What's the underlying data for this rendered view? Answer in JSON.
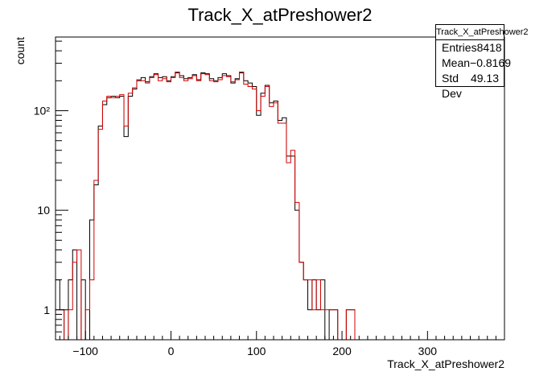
{
  "chart_data": {
    "type": "histogram",
    "title": "Track_X_atPreshower2",
    "xlabel": "Track_X_atPreshower2",
    "ylabel": "count",
    "xlim": [
      -135,
      390
    ],
    "ylim": [
      0.5,
      550
    ],
    "yscale": "log",
    "bin_width": 5,
    "bin_edges_start": -135,
    "xticks": [
      -100,
      0,
      100,
      200,
      300
    ],
    "xtick_labels": [
      "−100",
      "0",
      "100",
      "200",
      "300"
    ],
    "yticks": [
      1,
      10,
      100
    ],
    "ytick_labels": [
      "1",
      "10",
      "10²"
    ],
    "series": [
      {
        "color": "#000000",
        "values": [
          2,
          1,
          0,
          2,
          4,
          0,
          2,
          0,
          8,
          18,
          70,
          115,
          135,
          140,
          135,
          140,
          55,
          140,
          165,
          200,
          215,
          195,
          220,
          235,
          215,
          220,
          200,
          220,
          240,
          225,
          210,
          215,
          230,
          205,
          240,
          235,
          210,
          200,
          215,
          235,
          225,
          190,
          210,
          240,
          200,
          190,
          175,
          90,
          150,
          180,
          120,
          125,
          80,
          85,
          35,
          35,
          10,
          3,
          2,
          1,
          2,
          1,
          2,
          0,
          1,
          1,
          0,
          0,
          1,
          1,
          0,
          0,
          0,
          0,
          0,
          0,
          0,
          0,
          0,
          0,
          0,
          0,
          0,
          0,
          0,
          0,
          0,
          0,
          0,
          0,
          0,
          0,
          0,
          0,
          0,
          0,
          0,
          0,
          0,
          0,
          0,
          0,
          0,
          0,
          0
        ]
      },
      {
        "color": "#d40000",
        "values": [
          1,
          1,
          0,
          1,
          3,
          4,
          0,
          1,
          2,
          20,
          65,
          125,
          140,
          135,
          140,
          145,
          70,
          150,
          170,
          205,
          200,
          190,
          215,
          230,
          200,
          210,
          195,
          215,
          245,
          215,
          200,
          210,
          225,
          200,
          235,
          230,
          200,
          195,
          205,
          225,
          220,
          195,
          205,
          245,
          185,
          175,
          165,
          100,
          140,
          175,
          110,
          120,
          75,
          75,
          30,
          40,
          12,
          3,
          2,
          2,
          1,
          2,
          1,
          1,
          1,
          1,
          0,
          0,
          1,
          1,
          0,
          0,
          0,
          0,
          0,
          0,
          0,
          0,
          0,
          0,
          0,
          0,
          0,
          0,
          0,
          0,
          0,
          0,
          0,
          0,
          0,
          0,
          0,
          0,
          0,
          0,
          0,
          0,
          0,
          0,
          0,
          0,
          0,
          0,
          0
        ]
      }
    ],
    "stats_box": {
      "title": "Track_X_atPreshower2",
      "rows": [
        {
          "label": "Entries",
          "value": "8418"
        },
        {
          "label": "Mean",
          "value": "−0.8169"
        },
        {
          "label": "Std Dev",
          "value": "49.13"
        }
      ]
    }
  }
}
